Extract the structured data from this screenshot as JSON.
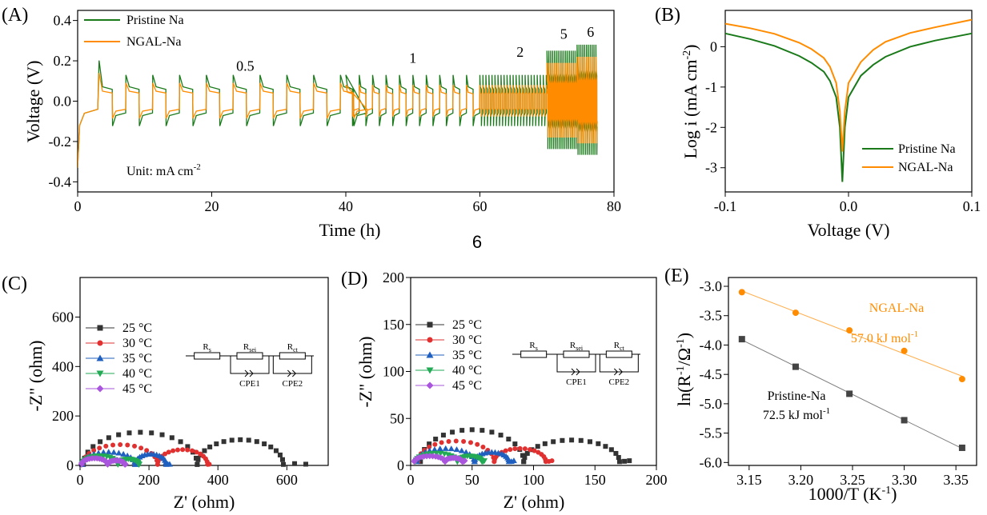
{
  "chart_data": [
    {
      "panel": "(A)",
      "type": "line",
      "xlabel": "Time (h)",
      "ylabel": "Voltage (V)",
      "xlim": [
        0,
        80
      ],
      "ylim": [
        -0.45,
        0.45
      ],
      "xticks": [
        0,
        20,
        40,
        60,
        80
      ],
      "yticks": [
        -0.4,
        -0.2,
        0.0,
        0.2,
        0.4
      ],
      "legend": [
        "Pristine Na",
        "NGAL-Na"
      ],
      "legend_position": "top-left",
      "unit_note": "Unit: mA cm",
      "unit_sup": "-2",
      "rate_labels": [
        {
          "text": "0.5",
          "x": 25,
          "y": 0.15
        },
        {
          "text": "1",
          "x": 50,
          "y": 0.19
        },
        {
          "text": "2",
          "x": 66,
          "y": 0.22
        },
        {
          "text": "5",
          "x": 72.5,
          "y": 0.31
        },
        {
          "text": "6",
          "x": 76.5,
          "y": 0.32
        }
      ],
      "segments": [
        {
          "current": 0.5,
          "start_h": 0,
          "end_h": 40,
          "pristine_amp": 0.13,
          "ngal_amp": 0.09
        },
        {
          "current": 1,
          "start_h": 40,
          "end_h": 60,
          "pristine_amp": 0.13,
          "ngal_amp": 0.08
        },
        {
          "current": 2,
          "start_h": 60,
          "end_h": 70,
          "pristine_amp": 0.13,
          "ngal_amp": 0.08
        },
        {
          "current": 5,
          "start_h": 70,
          "end_h": 74.5,
          "pristine_amp": 0.25,
          "ngal_amp": 0.19
        },
        {
          "current": 6,
          "start_h": 74.5,
          "end_h": 77.5,
          "pristine_amp": 0.28,
          "ngal_amp": 0.22
        }
      ],
      "series_colors": {
        "Pristine Na": "#1a7a1a",
        "NGAL-Na": "#ff8c00"
      }
    },
    {
      "panel": "(B)",
      "type": "line",
      "xlabel": "Voltage (V)",
      "ylabel_main": "Log i (mA cm",
      "ylabel_sup": "-2",
      "ylabel_end": ")",
      "xlim": [
        -0.1,
        0.1
      ],
      "ylim": [
        -3.6,
        0.9
      ],
      "xticks": [
        -0.1,
        0.0,
        0.1
      ],
      "yticks": [
        -3,
        -2,
        -1,
        0
      ],
      "legend": [
        "Pristine Na",
        "NGAL-Na"
      ],
      "legend_position": "bottom-right",
      "series": [
        {
          "name": "Pristine Na",
          "color": "#1a7a1a",
          "x": [
            -0.1,
            -0.08,
            -0.06,
            -0.04,
            -0.03,
            -0.02,
            -0.015,
            -0.01,
            -0.007,
            -0.005,
            -0.003,
            0.0,
            0.01,
            0.02,
            0.03,
            0.05,
            0.07,
            0.1
          ],
          "y": [
            0.33,
            0.19,
            0.02,
            -0.23,
            -0.4,
            -0.62,
            -0.85,
            -1.25,
            -2.0,
            -3.35,
            -2.0,
            -1.25,
            -0.72,
            -0.45,
            -0.25,
            0.0,
            0.15,
            0.33
          ]
        },
        {
          "name": "NGAL-Na",
          "color": "#ff8c00",
          "x": [
            -0.1,
            -0.08,
            -0.06,
            -0.04,
            -0.03,
            -0.02,
            -0.015,
            -0.01,
            -0.007,
            -0.005,
            -0.003,
            0.0,
            0.01,
            0.02,
            0.03,
            0.05,
            0.07,
            0.1
          ],
          "y": [
            0.57,
            0.46,
            0.32,
            0.1,
            -0.06,
            -0.28,
            -0.5,
            -0.9,
            -1.6,
            -2.6,
            -1.6,
            -0.9,
            -0.38,
            -0.08,
            0.12,
            0.34,
            0.48,
            0.67
          ]
        }
      ]
    },
    {
      "panel": "(C)",
      "type": "scatter",
      "xlabel": "Z' (ohm)",
      "ylabel": "-Z\" (ohm)",
      "xlim": [
        0,
        720
      ],
      "ylim": [
        0,
        760
      ],
      "xticks": [
        0,
        200,
        400,
        600
      ],
      "yticks": [
        0,
        200,
        400,
        600
      ],
      "legend_position": "middle-left",
      "circuit_labels": {
        "rs": "R",
        "rs_sub": "s",
        "rsei": "R",
        "rsei_sub": "sei",
        "rct": "R",
        "rct_sub": "ct",
        "cpe1": "CPE1",
        "cpe2": "CPE2"
      },
      "series": [
        {
          "name": "25 °C",
          "color": "#333333",
          "marker": "square",
          "arcs": [
            [
              10,
              340,
              130
            ],
            [
              340,
              590,
              100
            ]
          ],
          "tail_end": 655
        },
        {
          "name": "30 °C",
          "color": "#e03030",
          "marker": "circle",
          "arcs": [
            [
              8,
              225,
              80
            ],
            [
              225,
              370,
              60
            ]
          ],
          "tail_end": 375
        },
        {
          "name": "35 °C",
          "color": "#1f5fbf",
          "marker": "triangle-up",
          "arcs": [
            [
              6,
              160,
              50
            ],
            [
              160,
              250,
              42
            ]
          ],
          "tail_end": 260
        },
        {
          "name": "40 °C",
          "color": "#22aa55",
          "marker": "triangle-down",
          "arcs": [
            [
              5,
              110,
              35
            ],
            [
              110,
              170,
              22
            ]
          ],
          "tail_end": 172
        },
        {
          "name": "45 °C",
          "color": "#aa55dd",
          "marker": "diamond",
          "arcs": [
            [
              4,
              80,
              25
            ],
            [
              80,
              130,
              16
            ]
          ],
          "tail_end": 132
        }
      ]
    },
    {
      "panel": "(D)",
      "type": "scatter",
      "xlabel": "Z' (ohm)",
      "ylabel": "-Z\" (ohm)",
      "xlim": [
        0,
        200
      ],
      "ylim": [
        0,
        200
      ],
      "xticks": [
        0,
        50,
        100,
        150,
        200
      ],
      "yticks": [
        0,
        50,
        100,
        150,
        200
      ],
      "legend_position": "middle-left",
      "circuit_labels": {
        "rs": "R",
        "rs_sub": "s",
        "rsei": "R",
        "rsei_sub": "sei",
        "rct": "R",
        "rct_sub": "ct",
        "cpe1": "CPE1",
        "cpe2": "CPE2"
      },
      "series": [
        {
          "name": "25 °C",
          "color": "#333333",
          "marker": "square",
          "arcs": [
            [
              8,
              92,
              34
            ],
            [
              92,
              170,
              23
            ]
          ],
          "tail_end": 178
        },
        {
          "name": "30 °C",
          "color": "#e03030",
          "marker": "circle",
          "arcs": [
            [
              6,
              68,
              22
            ],
            [
              68,
              110,
              14
            ]
          ],
          "tail_end": 115
        },
        {
          "name": "35 °C",
          "color": "#1f5fbf",
          "marker": "triangle-up",
          "arcs": [
            [
              5,
              52,
              14
            ],
            [
              52,
              80,
              10
            ]
          ],
          "tail_end": 84
        },
        {
          "name": "40 °C",
          "color": "#22aa55",
          "marker": "triangle-down",
          "arcs": [
            [
              4,
              38,
              9
            ],
            [
              38,
              58,
              6
            ]
          ],
          "tail_end": 60
        },
        {
          "name": "45 °C",
          "color": "#aa55dd",
          "marker": "diamond",
          "arcs": [
            [
              3,
              28,
              6
            ],
            [
              28,
              42,
              4
            ]
          ],
          "tail_end": 44
        }
      ]
    },
    {
      "panel": "(E)",
      "type": "scatter",
      "xlabel": "1000/T (K",
      "xlabel_sup": "-1",
      "xlabel_end": ")",
      "ylabel": "ln(R",
      "ylabel_sup1": "-1",
      "ylabel_mid": "/Ω",
      "ylabel_sup2": "-1",
      "ylabel_end": ")",
      "xlim": [
        3.13,
        3.37
      ],
      "ylim": [
        -6.05,
        -2.85
      ],
      "xticks": [
        3.15,
        3.2,
        3.25,
        3.3,
        3.35
      ],
      "yticks": [
        -6.0,
        -5.5,
        -5.0,
        -4.5,
        -4.0,
        -3.5,
        -3.0
      ],
      "series": [
        {
          "name": "NGAL-Na",
          "energy": "57.0 kJ mol",
          "energy_sup": "-1",
          "color": "#ff8c00",
          "marker": "circle",
          "x": [
            3.143,
            3.195,
            3.247,
            3.3,
            3.356
          ],
          "y": [
            -3.1,
            -3.45,
            -3.75,
            -4.1,
            -4.58
          ]
        },
        {
          "name": "Pristine-Na",
          "energy": "72.5 kJ mol",
          "energy_sup": "-1",
          "color": "#444444",
          "marker": "square",
          "x": [
            3.143,
            3.195,
            3.247,
            3.3,
            3.356
          ],
          "y": [
            -3.9,
            -4.37,
            -4.83,
            -5.28,
            -5.75
          ]
        }
      ]
    }
  ],
  "stray_text": "6"
}
